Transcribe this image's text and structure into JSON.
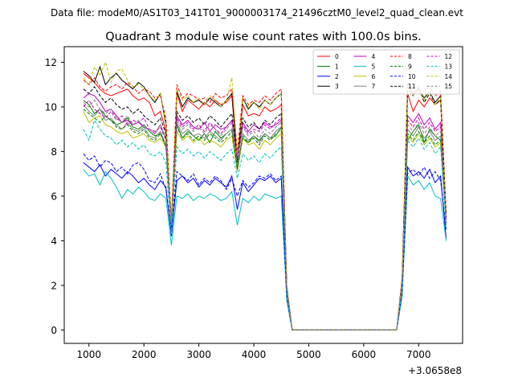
{
  "figure": {
    "header": "Data file: modeM0/AS1T03_141T01_9000003174_21496cztM0_level2_quad_clean.evt",
    "offset_label": "+3.0658e8"
  },
  "chart_data": {
    "type": "line",
    "title": "Quadrant 3 module wise count rates with 100.0s bins.",
    "xlabel": "",
    "ylabel": "",
    "xlim": [
      550,
      7800
    ],
    "ylim": [
      -0.6,
      12.7
    ],
    "xticks": [
      1000,
      2000,
      3000,
      4000,
      5000,
      6000,
      7000
    ],
    "yticks": [
      0,
      2,
      4,
      6,
      8,
      10,
      12
    ],
    "grid": false,
    "legend": {
      "placement": "top-right",
      "columns": 4
    },
    "x": [
      900,
      1000,
      1100,
      1200,
      1300,
      1400,
      1500,
      1600,
      1700,
      1800,
      1900,
      2000,
      2100,
      2200,
      2300,
      2400,
      2500,
      2600,
      2700,
      2800,
      2900,
      3000,
      3100,
      3200,
      3300,
      3400,
      3500,
      3600,
      3700,
      3800,
      3900,
      4000,
      4100,
      4200,
      4300,
      4400,
      4500,
      4600,
      4700,
      4800,
      4900,
      5000,
      5100,
      5200,
      5300,
      5400,
      5500,
      5600,
      5700,
      5800,
      5900,
      6000,
      6100,
      6200,
      6300,
      6400,
      6500,
      6600,
      6700,
      6800,
      6900,
      7000,
      7100,
      7200,
      7300,
      7400,
      7500
    ],
    "series": [
      {
        "name": "0",
        "color": "#ff0000",
        "dash": false,
        "values": [
          11.5,
          11.3,
          11.1,
          10.8,
          10.6,
          10.5,
          10.6,
          10.7,
          10.8,
          10.5,
          10.3,
          10.4,
          10.2,
          9.6,
          9.8,
          8.9,
          4.6,
          10.6,
          9.8,
          10.3,
          10.1,
          9.9,
          10.2,
          10.0,
          10.3,
          10.1,
          10.2,
          10.5,
          7.6,
          10.1,
          9.6,
          9.7,
          9.6,
          10.0,
          9.8,
          9.9,
          10.1,
          1.9,
          0,
          0,
          0,
          0,
          0,
          0,
          0,
          0,
          0,
          0,
          0,
          0,
          0,
          0,
          0,
          0,
          0,
          0,
          0,
          0,
          2.2,
          10.6,
          9.8,
          10.3,
          10.0,
          10.4,
          10.1,
          10.3,
          5.2
        ]
      },
      {
        "name": "1",
        "color": "#008000",
        "dash": false,
        "values": [
          10.3,
          10.1,
          9.7,
          9.9,
          9.6,
          9.4,
          9.2,
          9.3,
          9.5,
          9.1,
          9.0,
          9.2,
          8.9,
          8.7,
          8.8,
          8.3,
          4.7,
          9.2,
          8.6,
          8.9,
          8.7,
          8.5,
          8.8,
          8.4,
          8.9,
          8.6,
          8.8,
          9.0,
          7.3,
          8.6,
          8.4,
          8.7,
          8.5,
          8.8,
          8.6,
          8.7,
          9.1,
          1.8,
          0,
          0,
          0,
          0,
          0,
          0,
          0,
          0,
          0,
          0,
          0,
          0,
          0,
          0,
          0,
          0,
          0,
          0,
          0,
          0,
          2.0,
          8.5,
          8.9,
          9.2,
          8.4,
          9.0,
          8.7,
          8.5,
          4.8
        ]
      },
      {
        "name": "2",
        "color": "#0000ff",
        "dash": false,
        "values": [
          7.5,
          7.3,
          7.1,
          7.4,
          6.9,
          7.2,
          7.0,
          6.8,
          7.1,
          6.9,
          6.6,
          6.8,
          6.5,
          6.3,
          6.7,
          6.4,
          4.2,
          6.7,
          6.9,
          6.6,
          6.8,
          6.4,
          6.7,
          6.5,
          6.8,
          6.6,
          6.4,
          6.9,
          5.4,
          6.6,
          6.2,
          6.5,
          6.8,
          6.7,
          6.9,
          6.6,
          6.8,
          1.4,
          0,
          0,
          0,
          0,
          0,
          0,
          0,
          0,
          0,
          0,
          0,
          0,
          0,
          0,
          0,
          0,
          0,
          0,
          0,
          0,
          1.6,
          7.3,
          6.9,
          7.1,
          6.8,
          7.2,
          6.6,
          6.9,
          4.1
        ]
      },
      {
        "name": "3",
        "color": "#000000",
        "dash": false,
        "values": [
          11.6,
          11.4,
          11.1,
          11.8,
          11.0,
          11.3,
          11.5,
          11.2,
          11.0,
          10.8,
          11.1,
          10.9,
          10.5,
          10.2,
          10.6,
          9.2,
          4.5,
          10.7,
          10.0,
          10.4,
          10.2,
          10.3,
          10.1,
          10.4,
          10.2,
          10.0,
          10.3,
          10.6,
          7.5,
          10.4,
          9.9,
          10.2,
          10.0,
          10.3,
          10.1,
          10.4,
          10.6,
          1.9,
          0,
          0,
          0,
          0,
          0,
          0,
          0,
          0,
          0,
          0,
          0,
          0,
          0,
          0,
          0,
          0,
          0,
          0,
          0,
          0,
          2.3,
          11.0,
          10.6,
          10.8,
          10.4,
          10.7,
          10.2,
          10.5,
          5.0
        ]
      },
      {
        "name": "4",
        "color": "#bf00bf",
        "dash": false,
        "values": [
          10.4,
          10.6,
          10.5,
          10.2,
          9.8,
          9.9,
          9.6,
          9.3,
          9.4,
          9.2,
          9.3,
          9.1,
          9.0,
          8.8,
          9.2,
          8.6,
          4.9,
          9.6,
          9.2,
          9.4,
          9.1,
          9.0,
          9.3,
          8.9,
          9.2,
          9.0,
          9.1,
          9.4,
          7.8,
          9.3,
          8.9,
          9.2,
          9.0,
          9.3,
          9.1,
          9.2,
          9.4,
          1.8,
          0,
          0,
          0,
          0,
          0,
          0,
          0,
          0,
          0,
          0,
          0,
          0,
          0,
          0,
          0,
          0,
          0,
          0,
          0,
          0,
          2.1,
          9.6,
          9.3,
          9.7,
          9.2,
          9.5,
          9.0,
          9.3,
          5.1
        ]
      },
      {
        "name": "5",
        "color": "#00bfbf",
        "dash": false,
        "values": [
          7.2,
          6.9,
          7.0,
          6.5,
          7.1,
          6.8,
          6.4,
          5.9,
          6.3,
          6.1,
          6.4,
          6.2,
          5.9,
          5.8,
          6.1,
          5.9,
          3.8,
          6.0,
          5.9,
          6.1,
          5.8,
          6.0,
          5.9,
          6.1,
          6.0,
          5.8,
          5.9,
          6.2,
          4.7,
          5.9,
          5.7,
          6.0,
          5.8,
          6.1,
          6.0,
          5.9,
          6.0,
          1.3,
          0,
          0,
          0,
          0,
          0,
          0,
          0,
          0,
          0,
          0,
          0,
          0,
          0,
          0,
          0,
          0,
          0,
          0,
          0,
          0,
          1.5,
          6.9,
          6.5,
          6.7,
          6.3,
          6.6,
          6.0,
          5.9,
          4.0
        ]
      },
      {
        "name": "6",
        "color": "#bfbf00",
        "dash": false,
        "values": [
          9.8,
          9.3,
          9.5,
          9.6,
          9.2,
          9.1,
          8.9,
          8.8,
          8.9,
          8.6,
          8.7,
          8.8,
          8.5,
          8.4,
          8.6,
          8.2,
          4.8,
          8.9,
          8.5,
          8.7,
          8.4,
          8.6,
          8.3,
          8.5,
          8.4,
          8.2,
          8.5,
          8.7,
          7.1,
          8.6,
          8.3,
          8.4,
          8.1,
          8.5,
          8.3,
          8.6,
          8.8,
          1.7,
          0,
          0,
          0,
          0,
          0,
          0,
          0,
          0,
          0,
          0,
          0,
          0,
          0,
          0,
          0,
          0,
          0,
          0,
          0,
          0,
          1.9,
          8.7,
          8.4,
          8.8,
          8.3,
          8.6,
          8.2,
          8.4,
          4.7
        ]
      },
      {
        "name": "7",
        "color": "#808080",
        "dash": false,
        "values": [
          10.1,
          9.8,
          9.6,
          9.9,
          9.4,
          9.5,
          9.2,
          9.0,
          9.3,
          9.0,
          8.9,
          9.1,
          8.7,
          8.6,
          8.9,
          8.3,
          4.8,
          9.3,
          8.8,
          9.0,
          8.7,
          8.8,
          8.6,
          8.9,
          8.7,
          8.5,
          8.8,
          9.0,
          7.2,
          8.8,
          8.5,
          8.7,
          8.4,
          8.8,
          8.6,
          8.9,
          9.1,
          1.8,
          0,
          0,
          0,
          0,
          0,
          0,
          0,
          0,
          0,
          0,
          0,
          0,
          0,
          0,
          0,
          0,
          0,
          0,
          0,
          0,
          2.0,
          9.0,
          8.7,
          9.1,
          8.6,
          8.9,
          8.5,
          8.7,
          4.9
        ]
      },
      {
        "name": "8",
        "color": "#ff0000",
        "dash": true,
        "values": [
          11.2,
          11.0,
          11.3,
          10.9,
          10.7,
          10.9,
          11.0,
          10.8,
          11.1,
          10.9,
          10.6,
          10.8,
          10.7,
          10.4,
          10.5,
          9.5,
          4.9,
          11.0,
          10.4,
          10.6,
          10.5,
          10.3,
          10.4,
          10.2,
          10.6,
          10.4,
          10.5,
          10.8,
          8.0,
          10.5,
          10.1,
          10.3,
          10.2,
          10.5,
          10.3,
          10.6,
          10.8,
          2.0,
          0,
          0,
          0,
          0,
          0,
          0,
          0,
          0,
          0,
          0,
          0,
          0,
          0,
          0,
          0,
          0,
          0,
          0,
          0,
          0,
          2.3,
          11.1,
          10.8,
          10.6,
          10.7,
          10.9,
          10.5,
          10.7,
          5.3
        ]
      },
      {
        "name": "9",
        "color": "#008000",
        "dash": true,
        "values": [
          9.9,
          9.7,
          9.5,
          9.3,
          9.6,
          9.4,
          9.1,
          9.0,
          9.2,
          8.9,
          8.8,
          9.0,
          8.6,
          8.5,
          8.8,
          8.2,
          4.6,
          9.1,
          8.6,
          8.8,
          8.5,
          8.7,
          8.5,
          8.8,
          8.6,
          8.4,
          8.6,
          8.9,
          7.2,
          8.7,
          8.4,
          8.6,
          8.3,
          8.7,
          8.5,
          8.8,
          9.0,
          1.8,
          0,
          0,
          0,
          0,
          0,
          0,
          0,
          0,
          0,
          0,
          0,
          0,
          0,
          0,
          0,
          0,
          0,
          0,
          0,
          0,
          2.0,
          8.8,
          8.5,
          8.9,
          8.4,
          8.7,
          8.3,
          8.5,
          4.8
        ]
      },
      {
        "name": "10",
        "color": "#0000ff",
        "dash": true,
        "values": [
          7.9,
          7.6,
          7.8,
          7.3,
          7.6,
          7.5,
          7.1,
          7.3,
          7.0,
          7.4,
          7.5,
          7.2,
          6.7,
          6.6,
          7.0,
          6.3,
          4.4,
          7.1,
          6.9,
          6.7,
          7.0,
          6.5,
          6.8,
          6.6,
          6.9,
          6.7,
          6.3,
          6.8,
          6.0,
          6.7,
          6.4,
          6.6,
          6.9,
          6.8,
          7.0,
          6.7,
          6.9,
          1.5,
          0,
          0,
          0,
          0,
          0,
          0,
          0,
          0,
          0,
          0,
          0,
          0,
          0,
          0,
          0,
          0,
          0,
          0,
          0,
          0,
          1.7,
          7.0,
          7.2,
          6.9,
          7.3,
          6.8,
          7.1,
          6.7,
          4.5
        ]
      },
      {
        "name": "11",
        "color": "#000000",
        "dash": true,
        "values": [
          10.8,
          10.6,
          10.9,
          10.5,
          10.2,
          10.4,
          10.1,
          9.9,
          10.0,
          9.7,
          9.9,
          9.6,
          9.4,
          9.2,
          9.5,
          8.8,
          4.7,
          9.8,
          9.4,
          9.6,
          9.3,
          9.5,
          9.2,
          9.6,
          9.4,
          9.1,
          9.4,
          9.7,
          7.6,
          9.5,
          9.1,
          9.3,
          9.0,
          9.4,
          9.2,
          9.5,
          9.7,
          1.8,
          0,
          0,
          0,
          0,
          0,
          0,
          0,
          0,
          0,
          0,
          0,
          0,
          0,
          0,
          0,
          0,
          0,
          0,
          0,
          0,
          2.1,
          10.8,
          10.5,
          10.9,
          10.2,
          10.6,
          10.1,
          10.3,
          5.0
        ]
      },
      {
        "name": "12",
        "color": "#bf00bf",
        "dash": true,
        "values": [
          10.0,
          10.3,
          9.9,
          9.7,
          9.5,
          9.8,
          9.4,
          9.6,
          9.2,
          9.4,
          9.3,
          9.5,
          9.0,
          8.9,
          9.1,
          8.5,
          4.8,
          9.5,
          9.1,
          9.3,
          9.0,
          9.2,
          8.9,
          9.3,
          9.0,
          8.8,
          9.1,
          9.4,
          7.7,
          9.2,
          8.8,
          9.0,
          8.9,
          9.2,
          9.0,
          9.3,
          9.5,
          1.8,
          0,
          0,
          0,
          0,
          0,
          0,
          0,
          0,
          0,
          0,
          0,
          0,
          0,
          0,
          0,
          0,
          0,
          0,
          0,
          0,
          2.1,
          9.4,
          9.1,
          9.5,
          9.0,
          9.3,
          8.9,
          9.1,
          5.0
        ]
      },
      {
        "name": "13",
        "color": "#00bfbf",
        "dash": true,
        "values": [
          9.0,
          8.5,
          9.4,
          9.0,
          8.7,
          8.6,
          8.3,
          8.5,
          8.2,
          8.4,
          8.1,
          8.3,
          7.9,
          7.8,
          8.0,
          7.5,
          4.3,
          8.2,
          7.9,
          8.1,
          7.8,
          8.0,
          7.7,
          8.0,
          7.8,
          7.6,
          7.9,
          8.1,
          6.8,
          7.9,
          7.6,
          7.8,
          7.5,
          7.9,
          7.7,
          8.0,
          8.2,
          1.6,
          0,
          0,
          0,
          0,
          0,
          0,
          0,
          0,
          0,
          0,
          0,
          0,
          0,
          0,
          0,
          0,
          0,
          0,
          0,
          0,
          1.8,
          8.5,
          8.2,
          8.6,
          8.1,
          8.4,
          7.9,
          8.2,
          4.6
        ]
      },
      {
        "name": "14",
        "color": "#bfbf00",
        "dash": true,
        "values": [
          11.3,
          11.0,
          11.8,
          11.4,
          12.0,
          11.1,
          11.6,
          11.7,
          11.2,
          10.9,
          11.0,
          10.8,
          10.5,
          10.3,
          10.6,
          9.3,
          4.8,
          10.8,
          10.3,
          10.5,
          10.2,
          10.4,
          10.1,
          10.5,
          10.3,
          10.0,
          10.3,
          11.3,
          7.8,
          10.4,
          10.0,
          10.2,
          9.9,
          10.3,
          10.1,
          10.4,
          10.6,
          1.9,
          0,
          0,
          0,
          0,
          0,
          0,
          0,
          0,
          0,
          0,
          0,
          0,
          0,
          0,
          0,
          0,
          0,
          0,
          0,
          0,
          2.2,
          10.9,
          10.5,
          10.9,
          10.3,
          10.7,
          10.1,
          10.4,
          5.1
        ]
      },
      {
        "name": "15",
        "color": "#808080",
        "dash": true,
        "values": [
          10.2,
          10.0,
          10.3,
          9.9,
          9.7,
          9.9,
          9.5,
          9.3,
          9.6,
          9.2,
          9.4,
          9.1,
          9.0,
          8.8,
          9.2,
          8.6,
          4.7,
          9.4,
          9.0,
          9.2,
          8.9,
          9.1,
          8.8,
          9.2,
          9.0,
          8.7,
          9.0,
          9.3,
          7.4,
          9.1,
          8.7,
          8.9,
          8.6,
          9.0,
          8.8,
          9.1,
          9.3,
          1.8,
          0,
          0,
          0,
          0,
          0,
          0,
          0,
          0,
          0,
          0,
          0,
          0,
          0,
          0,
          0,
          0,
          0,
          0,
          0,
          0,
          2.0,
          9.2,
          8.9,
          9.3,
          8.8,
          9.1,
          8.7,
          8.9,
          4.9
        ]
      }
    ]
  }
}
